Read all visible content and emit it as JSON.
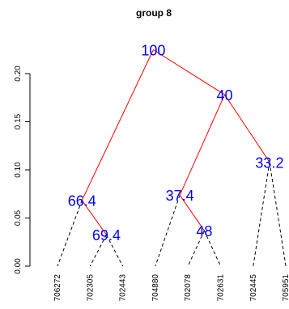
{
  "chart_data": {
    "type": "dendrogram",
    "title": "group 8",
    "xlabel": "",
    "ylabel": "",
    "ylim": [
      0,
      0.22
    ],
    "y_ticks": [
      "0.00",
      "0.05",
      "0.10",
      "0.15",
      "0.20"
    ],
    "leaves": [
      "706272",
      "702305",
      "702443",
      "704880",
      "702078",
      "702631",
      "702445",
      "705951"
    ],
    "nodes": [
      {
        "id": "n100",
        "label": "100",
        "height": 0.2248,
        "children": [
          "n66",
          "n40"
        ]
      },
      {
        "id": "n66",
        "label": "66.4",
        "height": 0.0683,
        "children": [
          "706272",
          "n69"
        ]
      },
      {
        "id": "n69",
        "label": "69.4",
        "height": 0.0326,
        "children": [
          "702305",
          "702443"
        ]
      },
      {
        "id": "n40",
        "label": "40",
        "height": 0.1781,
        "children": [
          "n37",
          "n33"
        ]
      },
      {
        "id": "n37",
        "label": "37.4",
        "height": 0.0738,
        "children": [
          "704880",
          "n48"
        ]
      },
      {
        "id": "n48",
        "label": "48",
        "height": 0.0369,
        "children": [
          "702078",
          "702631"
        ]
      },
      {
        "id": "n33",
        "label": "33.2",
        "height": 0.1081,
        "children": [
          "702445",
          "705951"
        ]
      }
    ],
    "colors": {
      "edge_highlight": "#ff0000",
      "edge_default": "#000000",
      "node_label": "#0000ff",
      "text": "#000000"
    },
    "highlight_edges": [
      [
        "n100",
        "n66"
      ],
      [
        "n100",
        "n40"
      ],
      [
        "n40",
        "n37"
      ],
      [
        "n40",
        "n33"
      ],
      [
        "n66",
        "n69"
      ],
      [
        "n37",
        "n48"
      ]
    ]
  }
}
